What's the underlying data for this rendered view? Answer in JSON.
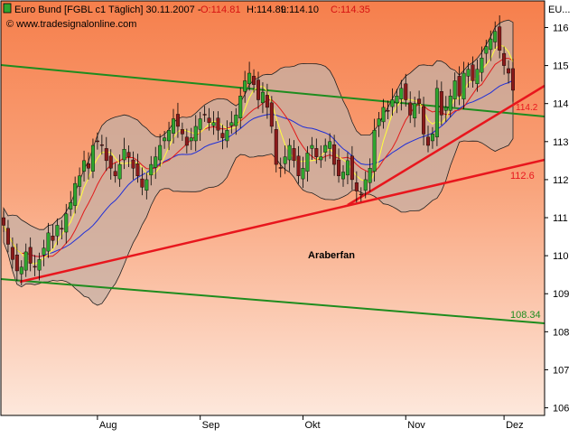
{
  "header": {
    "title": "Euro Bund [FGBL c1  Täglich] 30.11.2007 - ",
    "open": "O:114.81",
    "high": "H:114.89",
    "low": "L:114.10",
    "close": "C:114.35",
    "watermark": "© www.tradesignalonline.com",
    "corner_label": "EU..."
  },
  "colors": {
    "bg_top": "#f67f4c",
    "bg_bottom": "#fde8dc",
    "band_fill": "#c6b0a6",
    "up_candle": "#2fa52f",
    "down_candle": "#8b1a1a",
    "trend_red": "#e8161d",
    "channel_green": "#1e8c1e",
    "ma_yellow": "#ffff3c",
    "ma_red": "#e11b1b",
    "ma_blue": "#1f2fd8",
    "label_red": "#e8161d",
    "label_green": "#1e8c1e",
    "marker_green": "#2fa52f"
  },
  "chart_data": {
    "type": "candlestick",
    "instrument": "Euro Bund [FGBL c1  Täglich]",
    "ylim": [
      105.8,
      116.7
    ],
    "y_ticks": [
      106,
      107,
      108,
      109,
      110,
      111,
      112,
      113,
      114,
      115,
      116
    ],
    "x_month_labels": [
      "Aug",
      "Sep",
      "Okt",
      "Nov",
      "Dez"
    ],
    "annotation": "Araberfan",
    "level_labels": [
      {
        "text": "112.6",
        "series": "lower red trendline"
      },
      {
        "text": "108.34",
        "series": "lower green channel"
      },
      {
        "text": "114.2",
        "series": "upper red trendline"
      }
    ],
    "grid": false,
    "candles_close": [
      110.8,
      110.3,
      109.9,
      109.6,
      109.7,
      110.1,
      109.8,
      109.7,
      109.9,
      110.2,
      110.6,
      110.4,
      110.8,
      110.7,
      111.1,
      111.4,
      111.9,
      112.1,
      112.5,
      112.3,
      112.9,
      113.0,
      112.9,
      112.5,
      112.3,
      112.1,
      112.4,
      112.8,
      112.6,
      112.3,
      112.1,
      111.8,
      112.0,
      112.4,
      112.6,
      112.9,
      113.1,
      113.3,
      113.6,
      113.4,
      113.2,
      112.9,
      113.1,
      113.4,
      113.6,
      113.7,
      113.5,
      113.5,
      113.3,
      113.1,
      113.3,
      113.5,
      113.7,
      114.2,
      114.6,
      114.8,
      114.5,
      114.1,
      114.3,
      113.9,
      113.4,
      112.4,
      112.3,
      112.6,
      112.9,
      112.5,
      112.1,
      112.3,
      112.7,
      112.9,
      112.6,
      112.6,
      112.9,
      113.0,
      112.4,
      112.1,
      112.2,
      112.5,
      112.0,
      111.7,
      111.6,
      112.0,
      112.3,
      113.3,
      113.6,
      113.9,
      113.8,
      114.1,
      114.2,
      114.4,
      114.1,
      113.7,
      114.0,
      114.0,
      113.2,
      112.9,
      113.2,
      114.4,
      113.7,
      113.9,
      114.2,
      114.6,
      114.2,
      114.8,
      114.9,
      114.6,
      114.9,
      115.2,
      115.5,
      115.7,
      115.9,
      115.4,
      115.0,
      114.8,
      114.35
    ]
  }
}
